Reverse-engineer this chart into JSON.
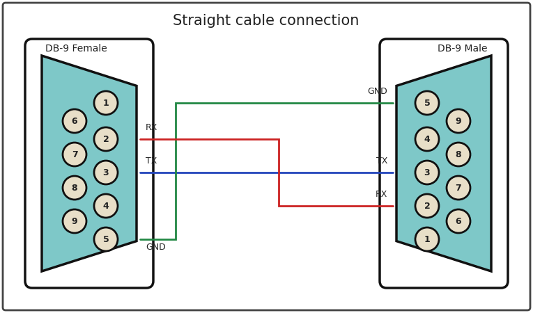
{
  "title": "Straight cable connection",
  "title_fontsize": 15,
  "background_color": "#ffffff",
  "border_color": "#444444",
  "connector_fill": "#7ec8c8",
  "connector_outline": "#111111",
  "outer_shell_fill": "#ffffff",
  "outer_shell_outline": "#111111",
  "pin_fill": "#e8dfc8",
  "pin_outline": "#111111",
  "label_color": "#222222",
  "left_label": "DB-9 Female",
  "right_label": "DB-9 Male",
  "wire_red": "#cc2222",
  "wire_blue": "#2244bb",
  "wire_green": "#228844",
  "wire_lw": 2.0,
  "fig_w": 7.65,
  "fig_h": 4.5,
  "dpi": 100
}
